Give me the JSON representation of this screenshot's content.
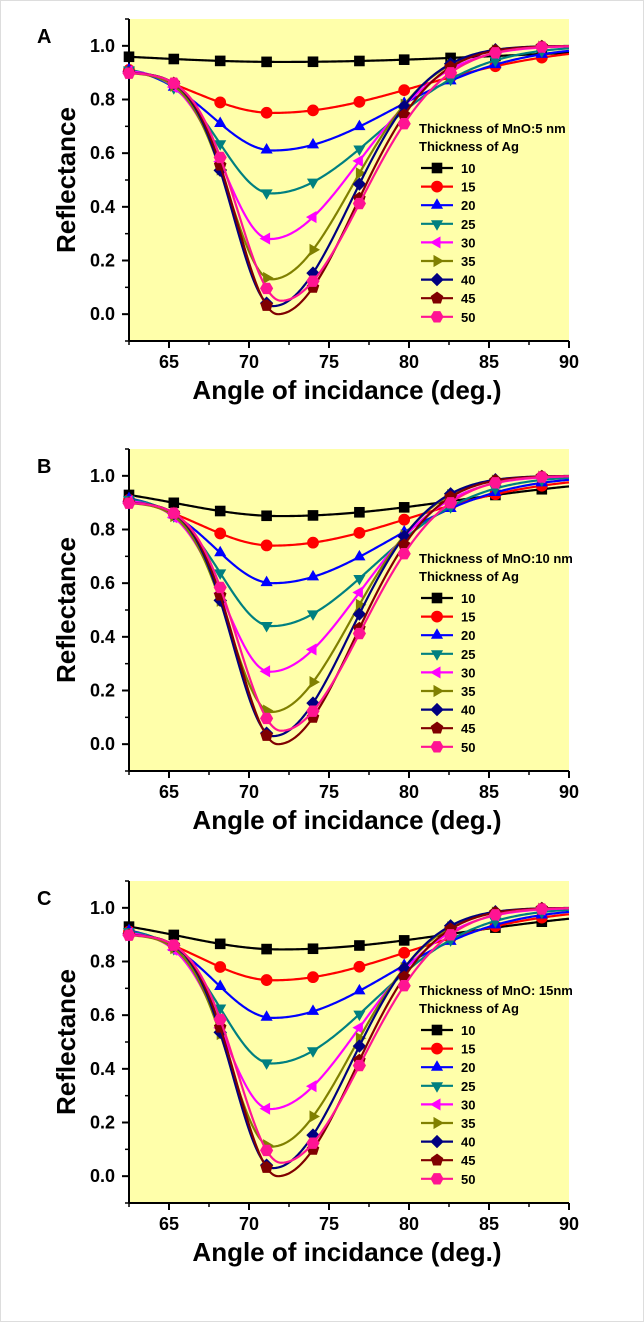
{
  "chart_data": [
    {
      "type": "line",
      "panel": "A",
      "xlabel": "Angle of incidance (deg.)",
      "ylabel": "Reflectance",
      "xlim": [
        62.5,
        90
      ],
      "ylim": [
        -0.1,
        1.1
      ],
      "xticks": [
        65,
        70,
        75,
        80,
        85,
        90
      ],
      "yticks": [
        0.0,
        0.2,
        0.4,
        0.6,
        0.8,
        1.0
      ],
      "legend_title_1": "Thickness of MnO:5 nm",
      "legend_title_2": "Thickness of Ag",
      "legend_position": "right",
      "series": [
        {
          "name": "10",
          "color": "#000000",
          "marker": "square",
          "x0": 0.985,
          "min": 0.94,
          "theta_min": 72.0,
          "w_left": 9.0,
          "w_right": 14.0
        },
        {
          "name": "15",
          "color": "#ff0000",
          "marker": "circle",
          "x0": 0.95,
          "min": 0.75,
          "theta_min": 71.5,
          "w_left": 5.0,
          "w_right": 9.0
        },
        {
          "name": "20",
          "color": "#0000ff",
          "marker": "triangle-up",
          "x0": 0.93,
          "min": 0.61,
          "theta_min": 71.5,
          "w_left": 3.8,
          "w_right": 7.5
        },
        {
          "name": "25",
          "color": "#008080",
          "marker": "triangle-down",
          "x0": 0.92,
          "min": 0.45,
          "theta_min": 71.4,
          "w_left": 3.2,
          "w_right": 6.5
        },
        {
          "name": "30",
          "color": "#ff00ff",
          "marker": "triangle-left",
          "x0": 0.91,
          "min": 0.28,
          "theta_min": 71.3,
          "w_left": 2.8,
          "w_right": 5.5
        },
        {
          "name": "35",
          "color": "#808000",
          "marker": "triangle-right",
          "x0": 0.9,
          "min": 0.13,
          "theta_min": 71.4,
          "w_left": 2.6,
          "w_right": 5.0
        },
        {
          "name": "40",
          "color": "#000080",
          "marker": "diamond",
          "x0": 0.9,
          "min": 0.03,
          "theta_min": 71.5,
          "w_left": 2.5,
          "w_right": 4.8
        },
        {
          "name": "45",
          "color": "#800000",
          "marker": "pentagon",
          "x0": 0.9,
          "min": 0.0,
          "theta_min": 71.8,
          "w_left": 2.6,
          "w_right": 4.8
        },
        {
          "name": "50",
          "color": "#ff1493",
          "marker": "hexagon",
          "x0": 0.9,
          "min": 0.05,
          "theta_min": 72.0,
          "w_left": 2.7,
          "w_right": 5.0
        }
      ]
    },
    {
      "type": "line",
      "panel": "B",
      "xlabel": "Angle of incidance (deg.)",
      "ylabel": "Reflectance",
      "xlim": [
        62.5,
        90
      ],
      "ylim": [
        -0.1,
        1.1
      ],
      "xticks": [
        65,
        70,
        75,
        80,
        85,
        90
      ],
      "yticks": [
        0.0,
        0.2,
        0.4,
        0.6,
        0.8,
        1.0
      ],
      "legend_title_1": "Thickness of MnO:10 nm",
      "legend_title_2": "Thickness of Ag",
      "legend_position": "right",
      "series": [
        {
          "name": "10",
          "color": "#000000",
          "marker": "square",
          "x0": 0.97,
          "min": 0.85,
          "theta_min": 72.0,
          "w_left": 6.5,
          "w_right": 11.0
        },
        {
          "name": "15",
          "color": "#ff0000",
          "marker": "circle",
          "x0": 0.94,
          "min": 0.74,
          "theta_min": 71.5,
          "w_left": 4.6,
          "w_right": 8.5
        },
        {
          "name": "20",
          "color": "#0000ff",
          "marker": "triangle-up",
          "x0": 0.93,
          "min": 0.6,
          "theta_min": 71.5,
          "w_left": 3.6,
          "w_right": 7.2
        },
        {
          "name": "25",
          "color": "#008080",
          "marker": "triangle-down",
          "x0": 0.92,
          "min": 0.44,
          "theta_min": 71.4,
          "w_left": 3.1,
          "w_right": 6.3
        },
        {
          "name": "30",
          "color": "#ff00ff",
          "marker": "triangle-left",
          "x0": 0.91,
          "min": 0.27,
          "theta_min": 71.3,
          "w_left": 2.8,
          "w_right": 5.5
        },
        {
          "name": "35",
          "color": "#808000",
          "marker": "triangle-right",
          "x0": 0.9,
          "min": 0.12,
          "theta_min": 71.4,
          "w_left": 2.6,
          "w_right": 5.0
        },
        {
          "name": "40",
          "color": "#000080",
          "marker": "diamond",
          "x0": 0.9,
          "min": 0.03,
          "theta_min": 71.5,
          "w_left": 2.5,
          "w_right": 4.8
        },
        {
          "name": "45",
          "color": "#800000",
          "marker": "pentagon",
          "x0": 0.9,
          "min": 0.0,
          "theta_min": 71.8,
          "w_left": 2.6,
          "w_right": 4.8
        },
        {
          "name": "50",
          "color": "#ff1493",
          "marker": "hexagon",
          "x0": 0.9,
          "min": 0.05,
          "theta_min": 72.0,
          "w_left": 2.7,
          "w_right": 5.0
        }
      ]
    },
    {
      "type": "line",
      "panel": "C",
      "xlabel": "Angle of incidance (deg.)",
      "ylabel": "Reflectance",
      "xlim": [
        62.5,
        90
      ],
      "ylim": [
        -0.1,
        1.1
      ],
      "xticks": [
        65,
        70,
        75,
        80,
        85,
        90
      ],
      "yticks": [
        0.0,
        0.2,
        0.4,
        0.6,
        0.8,
        1.0
      ],
      "legend_title_1": "Thickness of MnO: 15nm",
      "legend_title_2": "Thickness of Ag",
      "legend_position": "right",
      "series": [
        {
          "name": "10",
          "color": "#000000",
          "marker": "square",
          "x0": 0.97,
          "min": 0.845,
          "theta_min": 72.0,
          "w_left": 6.3,
          "w_right": 11.0
        },
        {
          "name": "15",
          "color": "#ff0000",
          "marker": "circle",
          "x0": 0.94,
          "min": 0.73,
          "theta_min": 71.5,
          "w_left": 4.5,
          "w_right": 8.4
        },
        {
          "name": "20",
          "color": "#0000ff",
          "marker": "triangle-up",
          "x0": 0.93,
          "min": 0.59,
          "theta_min": 71.5,
          "w_left": 3.6,
          "w_right": 7.2
        },
        {
          "name": "25",
          "color": "#008080",
          "marker": "triangle-down",
          "x0": 0.92,
          "min": 0.42,
          "theta_min": 71.4,
          "w_left": 3.1,
          "w_right": 6.3
        },
        {
          "name": "30",
          "color": "#ff00ff",
          "marker": "triangle-left",
          "x0": 0.91,
          "min": 0.25,
          "theta_min": 71.3,
          "w_left": 2.8,
          "w_right": 5.5
        },
        {
          "name": "35",
          "color": "#808000",
          "marker": "triangle-right",
          "x0": 0.9,
          "min": 0.11,
          "theta_min": 71.4,
          "w_left": 2.6,
          "w_right": 5.0
        },
        {
          "name": "40",
          "color": "#000080",
          "marker": "diamond",
          "x0": 0.9,
          "min": 0.03,
          "theta_min": 71.5,
          "w_left": 2.5,
          "w_right": 4.8
        },
        {
          "name": "45",
          "color": "#800000",
          "marker": "pentagon",
          "x0": 0.9,
          "min": 0.0,
          "theta_min": 71.8,
          "w_left": 2.6,
          "w_right": 4.8
        },
        {
          "name": "50",
          "color": "#ff1493",
          "marker": "hexagon",
          "x0": 0.9,
          "min": 0.05,
          "theta_min": 72.0,
          "w_left": 2.7,
          "w_right": 5.0
        }
      ]
    }
  ],
  "colors": {
    "plot_background": "#ffffaa",
    "axis": "#000000"
  },
  "marker_angles": [
    62.5,
    65.3,
    68.2,
    71.1,
    74.0,
    76.9,
    79.7,
    82.6,
    85.4,
    88.3
  ]
}
